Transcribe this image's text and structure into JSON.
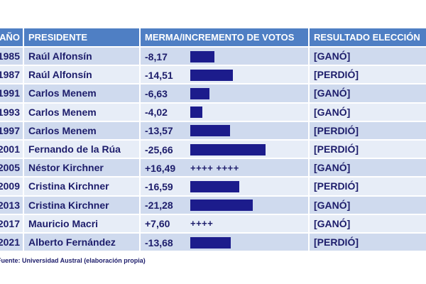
{
  "header": {
    "year": "AÑO",
    "president": "PRESIDENTE",
    "votes": "MERMA/INCREMENTO DE VOTOS",
    "result": "RESULTADO ELECCIÓN"
  },
  "rows": [
    {
      "year": "1985",
      "president": "Raúl Alfonsín",
      "change": "-8,17",
      "value": -8.17,
      "result": "[GANÓ]"
    },
    {
      "year": "1987",
      "president": "Raúl Alfonsín",
      "change": "-14,51",
      "value": -14.51,
      "result": "[PERDIÓ]"
    },
    {
      "year": "1991",
      "president": "Carlos Menem",
      "change": "-6,63",
      "value": -6.63,
      "result": "[GANÓ]"
    },
    {
      "year": "1993",
      "president": "Carlos Menem",
      "change": "-4,02",
      "value": -4.02,
      "result": "[GANÓ]"
    },
    {
      "year": "1997",
      "president": "Carlos Menem",
      "change": "-13,57",
      "value": -13.57,
      "result": "[PERDIÓ]"
    },
    {
      "year": "2001",
      "president": "Fernando de la Rúa",
      "change": "-25,66",
      "value": -25.66,
      "result": "[PERDIÓ]"
    },
    {
      "year": "2005",
      "president": "Néstor Kirchner",
      "change": "+16,49",
      "value": 16.49,
      "marks": "++++ ++++",
      "result": "[GANÓ]"
    },
    {
      "year": "2009",
      "president": "Cristina Kirchner",
      "change": "-16,59",
      "value": -16.59,
      "result": "[PERDIÓ]"
    },
    {
      "year": "2013",
      "president": "Cristina Kirchner",
      "change": "-21,28",
      "value": -21.28,
      "result": "[GANÓ]"
    },
    {
      "year": "2017",
      "president": "Mauricio Macri",
      "change": "+7,60",
      "value": 7.6,
      "marks": "++++",
      "result": "[GANÓ]"
    },
    {
      "year": "2021",
      "president": "Alberto Fernández",
      "change": "-13,68",
      "value": -13.68,
      "result": "[PERDIÓ]"
    }
  ],
  "source": "Fuente: Universidad Austral (elaboración propia)",
  "colors": {
    "header": "#4f7fc4",
    "bar": "#1c1c8c",
    "text": "#1d1d6b"
  }
}
